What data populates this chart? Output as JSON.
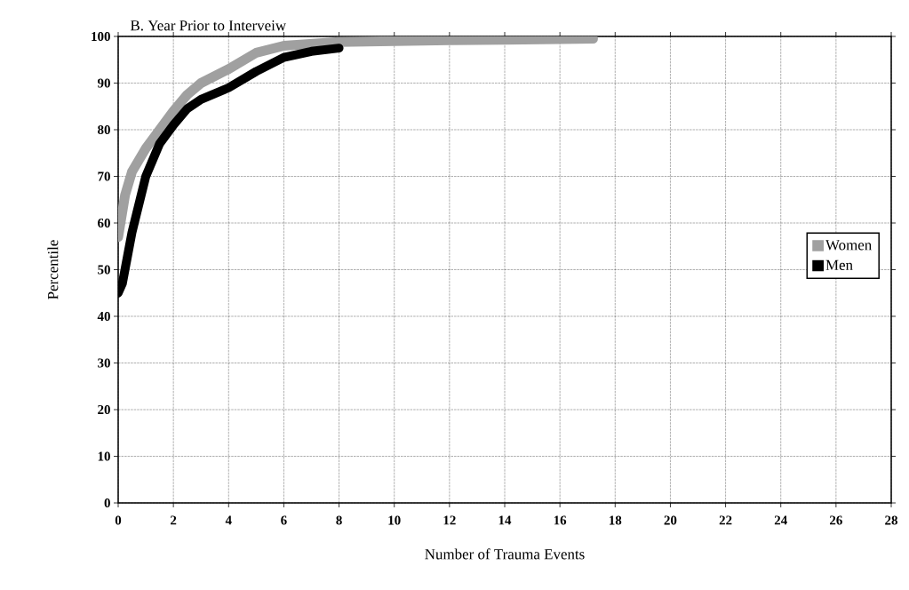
{
  "chart_data": {
    "type": "line",
    "title": "B.  Year Prior to Interveiw",
    "xlabel": "Number of Trauma Events",
    "ylabel": "Percentile",
    "xlim": [
      0,
      28
    ],
    "xticks": [
      0,
      2,
      4,
      6,
      8,
      10,
      12,
      14,
      16,
      18,
      20,
      22,
      24,
      26,
      28
    ],
    "ylim": [
      0,
      100
    ],
    "yticks": [
      0,
      10,
      20,
      30,
      40,
      50,
      60,
      70,
      80,
      90,
      100
    ],
    "grid": true,
    "legend": "right",
    "marker": "none",
    "line_style": "solid",
    "series": [
      {
        "name": "Women",
        "color": "#a0a0a0",
        "x": [
          0,
          0.25,
          0.5,
          1,
          1.5,
          2,
          2.5,
          3,
          4,
          5,
          6,
          8,
          10,
          12,
          14,
          16,
          17.2
        ],
        "values": [
          57,
          66,
          71,
          76,
          80,
          84,
          87.5,
          90,
          93,
          96.5,
          98,
          98.8,
          99,
          99.2,
          99.3,
          99.4,
          99.5
        ]
      },
      {
        "name": "Men",
        "color": "#000000",
        "x": [
          0,
          0.15,
          0.5,
          1,
          1.5,
          2,
          2.5,
          3,
          4,
          5,
          6,
          7,
          8
        ],
        "values": [
          45,
          47,
          58,
          70,
          77,
          81,
          84.5,
          86.5,
          89,
          92.5,
          95.5,
          96.8,
          97.5
        ]
      }
    ]
  }
}
